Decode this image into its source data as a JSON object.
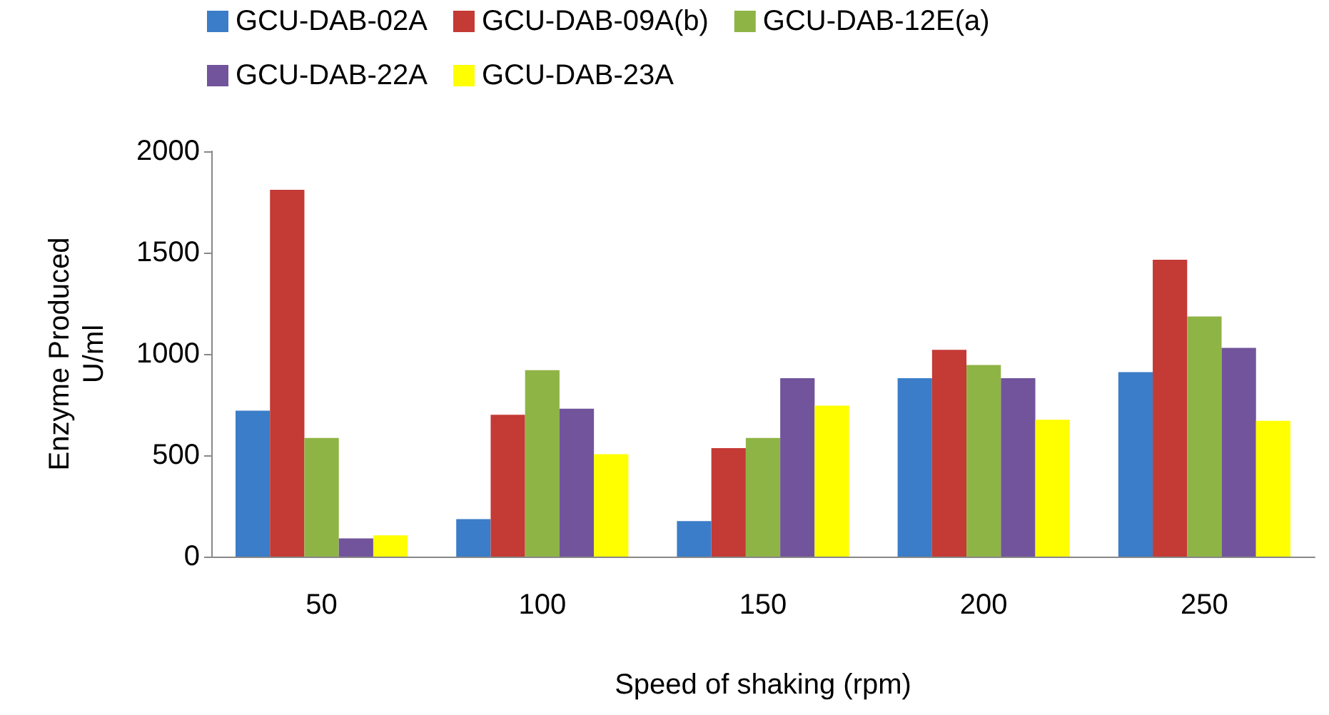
{
  "chart_data": {
    "type": "bar",
    "xlabel": "Speed of shaking (rpm)",
    "ylabel": "Enzyme Produced\nU/ml",
    "categories": [
      "50",
      "100",
      "150",
      "200",
      "250"
    ],
    "series": [
      {
        "name": "GCU-DAB-02A",
        "color": "#3b7dc8",
        "values": [
          720,
          185,
          175,
          880,
          910
        ]
      },
      {
        "name": "GCU-DAB-09A(b)",
        "color": "#c43a35",
        "values": [
          1810,
          700,
          535,
          1020,
          1465
        ]
      },
      {
        "name": "GCU-DAB-12E(a)",
        "color": "#8fb446",
        "values": [
          585,
          920,
          585,
          945,
          1185
        ]
      },
      {
        "name": "GCU-DAB-22A",
        "color": "#71549b",
        "values": [
          90,
          730,
          880,
          880,
          1030
        ]
      },
      {
        "name": "GCU-DAB-23A",
        "color": "#ffff00",
        "values": [
          105,
          505,
          745,
          675,
          670
        ]
      }
    ],
    "ylim": [
      0,
      2000
    ],
    "yticks": [
      0,
      500,
      1000,
      1500,
      2000
    ],
    "grid": false,
    "legend": "top"
  }
}
